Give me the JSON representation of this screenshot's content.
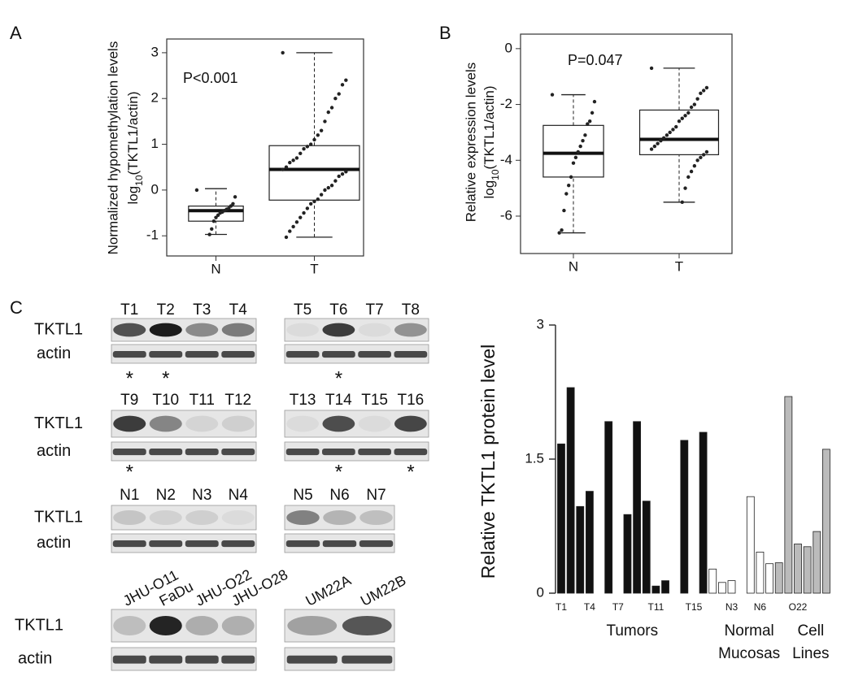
{
  "chart_data": [
    {
      "type": "box",
      "panel": "A",
      "ylabel": [
        "Normalized hypomethylation levels",
        "log10(TKTL1/actin)"
      ],
      "annotation": "P<0.001",
      "categories": [
        "N",
        "T"
      ],
      "ylim": [
        -1.44,
        3.3
      ],
      "yticks": [
        -1,
        0,
        1,
        2,
        3
      ],
      "boxes": [
        {
          "whislo": -0.97,
          "q1": -0.68,
          "med": -0.45,
          "q3": -0.35,
          "whishi": 0.03,
          "points": [
            0.0,
            -0.15,
            -0.3,
            -0.35,
            -0.4,
            -0.42,
            -0.45,
            -0.48,
            -0.5,
            -0.55,
            -0.6,
            -0.68,
            -0.85,
            -0.97
          ]
        },
        {
          "whislo": -1.03,
          "q1": -0.22,
          "med": 0.45,
          "q3": 0.97,
          "whishi": 3.0,
          "points": [
            3.0,
            2.4,
            2.3,
            2.1,
            2.0,
            1.8,
            1.7,
            1.5,
            1.3,
            1.2,
            1.1,
            1.0,
            0.95,
            0.9,
            0.8,
            0.7,
            0.65,
            0.6,
            0.5,
            0.45,
            0.4,
            0.35,
            0.3,
            0.2,
            0.1,
            0.05,
            0.0,
            -0.1,
            -0.2,
            -0.25,
            -0.3,
            -0.4,
            -0.5,
            -0.6,
            -0.7,
            -0.8,
            -0.9,
            -1.03
          ]
        }
      ]
    },
    {
      "type": "box",
      "panel": "B",
      "ylabel": [
        "Relative expression levels",
        "log10(TKTL1/actin)"
      ],
      "annotation": "P=0.047",
      "categories": [
        "N",
        "T"
      ],
      "ylim": [
        -7.34,
        0.52
      ],
      "yticks": [
        0,
        -2,
        -4,
        -6
      ],
      "boxes": [
        {
          "whislo": -6.6,
          "q1": -4.6,
          "med": -3.75,
          "q3": -2.75,
          "whishi": -1.65,
          "points": [
            -1.65,
            -1.9,
            -2.3,
            -2.6,
            -2.7,
            -3.1,
            -3.3,
            -3.5,
            -3.7,
            -3.9,
            -4.1,
            -4.6,
            -4.9,
            -5.2,
            -5.8,
            -6.5,
            -6.6
          ]
        },
        {
          "whislo": -5.5,
          "q1": -3.8,
          "med": -3.25,
          "q3": -2.2,
          "whishi": -0.7,
          "points": [
            -0.7,
            -1.4,
            -1.5,
            -1.6,
            -1.8,
            -2.0,
            -2.1,
            -2.3,
            -2.4,
            -2.5,
            -2.6,
            -2.8,
            -2.9,
            -3.0,
            -3.1,
            -3.2,
            -3.3,
            -3.4,
            -3.5,
            -3.6,
            -3.7,
            -3.8,
            -3.9,
            -4.0,
            -4.2,
            -4.4,
            -4.6,
            -5.0,
            -5.5
          ]
        }
      ]
    },
    {
      "type": "grouped-bar",
      "panel": "C",
      "ylabel": "Relative TKTL1 protein level",
      "ylim": [
        0,
        3
      ],
      "yticks": [
        0,
        1.5,
        3
      ],
      "groups": [
        {
          "name": [
            "Tumors"
          ],
          "color": "#111111",
          "categories": [
            "T1",
            null,
            null,
            "T4",
            null,
            null,
            "T7",
            null,
            null,
            null,
            "T11",
            null,
            null,
            null,
            "T15",
            null
          ],
          "values": [
            1.67,
            2.3,
            0.97,
            1.14,
            0,
            1.92,
            0,
            0.88,
            1.92,
            1.03,
            0.08,
            0.14,
            0,
            1.71,
            0,
            1.8
          ]
        },
        {
          "name": [
            "Normal",
            "Mucosas"
          ],
          "color": "#ffffff",
          "categories": [
            null,
            null,
            "N3",
            null,
            null,
            "N6",
            null
          ],
          "values": [
            0.27,
            0.12,
            0.14,
            0,
            1.08,
            0.46,
            0.33
          ]
        },
        {
          "name": [
            "Cell",
            "Lines"
          ],
          "color": "#bbbbbb",
          "categories": [
            null,
            null,
            "O22",
            null,
            null,
            null
          ],
          "values": [
            0.34,
            2.2,
            0.55,
            0.52,
            0.69,
            1.61
          ]
        }
      ]
    }
  ],
  "blot_rows": [
    {
      "rows": [
        "TKTL1",
        "actin"
      ],
      "blots": [
        {
          "lanes": [
            "T1",
            "T2",
            "T3",
            "T4"
          ],
          "marks": [
            "*",
            "*",
            null,
            null
          ]
        },
        {
          "lanes": [
            "T5",
            "T6",
            "T7",
            "T8"
          ],
          "marks": [
            null,
            "*",
            null,
            null
          ]
        }
      ]
    },
    {
      "rows": [
        "TKTL1",
        "actin"
      ],
      "blots": [
        {
          "lanes": [
            "T9",
            "T10",
            "T11",
            "T12"
          ],
          "marks": [
            "*",
            null,
            null,
            null
          ]
        },
        {
          "lanes": [
            "T13",
            "T14",
            "T15",
            "T16"
          ],
          "marks": [
            null,
            "*",
            null,
            "*"
          ]
        }
      ]
    },
    {
      "rows": [
        "TKTL1",
        "actin"
      ],
      "blots": [
        {
          "lanes": [
            "N1",
            "N2",
            "N3",
            "N4"
          ],
          "marks": [
            null,
            null,
            null,
            null
          ]
        },
        {
          "lanes": [
            "N5",
            "N6",
            "N7"
          ],
          "marks": [
            null,
            null,
            null
          ]
        }
      ]
    },
    {
      "rows": [
        "TKTL1",
        "actin"
      ],
      "blots": [
        {
          "lanes": [
            "JHU-O11",
            "FaDu",
            "JHU-O22",
            "JHU-O28"
          ],
          "marks": [
            null,
            null,
            null,
            null
          ]
        },
        {
          "lanes": [
            "UM22A",
            "UM22B"
          ],
          "marks": [
            null,
            null
          ]
        }
      ]
    }
  ]
}
